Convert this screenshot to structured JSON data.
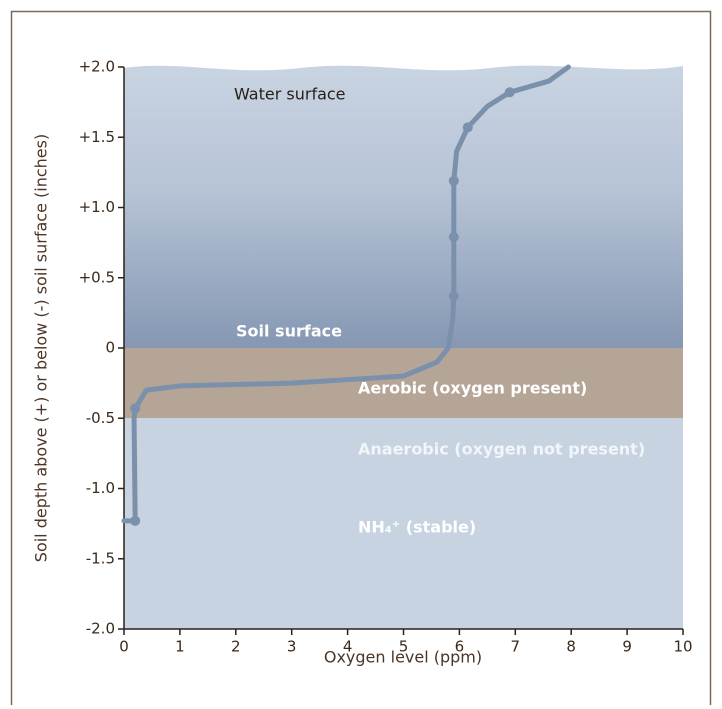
{
  "chart_data": {
    "type": "line",
    "xlabel": "Oxygen level (ppm)",
    "ylabel": "Soil depth above (+) or below (-) soil surface (inches)",
    "xlim": [
      0,
      10
    ],
    "ylim": [
      -2,
      2
    ],
    "xticks": [
      0,
      1,
      2,
      3,
      4,
      5,
      6,
      7,
      8,
      9,
      10
    ],
    "yticks": [
      {
        "value": 2,
        "label": "+2.0"
      },
      {
        "value": 1.5,
        "label": "+1.5"
      },
      {
        "value": 1,
        "label": "+1.0"
      },
      {
        "value": 0.5,
        "label": "+0.5"
      },
      0,
      -0.5,
      {
        "value": -1,
        "label": "-1.0"
      },
      -1.5,
      {
        "value": -2,
        "label": "-2.0"
      }
    ],
    "series": [
      {
        "color": "#7b90ab",
        "x": [
          0,
          0.2,
          0.18,
          0.2,
          0.4,
          1,
          3,
          5,
          5.6,
          5.8,
          5.88,
          5.9,
          5.9,
          5.9,
          5.95,
          6.15,
          6.5,
          6.9,
          7.6,
          7.95
        ],
        "values": [
          -1.23,
          -1.23,
          -0.5,
          -0.43,
          -0.3,
          -0.27,
          -0.25,
          -0.2,
          -0.1,
          0,
          0.2,
          0.37,
          0.79,
          1.19,
          1.4,
          1.57,
          1.72,
          1.82,
          1.9,
          2.0
        ]
      }
    ],
    "markers": {
      "color": "#7b90ab",
      "x": [
        0.2,
        0.2,
        5.9,
        5.9,
        5.9,
        6.15,
        6.9
      ],
      "values": [
        -1.23,
        -0.43,
        0.37,
        0.79,
        1.19,
        1.57,
        1.82
      ]
    },
    "annotations": [
      "Water surface",
      "Soil surface",
      "Aerobic (oxygen present)",
      "Anaerobic (oxygen not present)",
      "NH₄⁺ (stable)"
    ]
  }
}
